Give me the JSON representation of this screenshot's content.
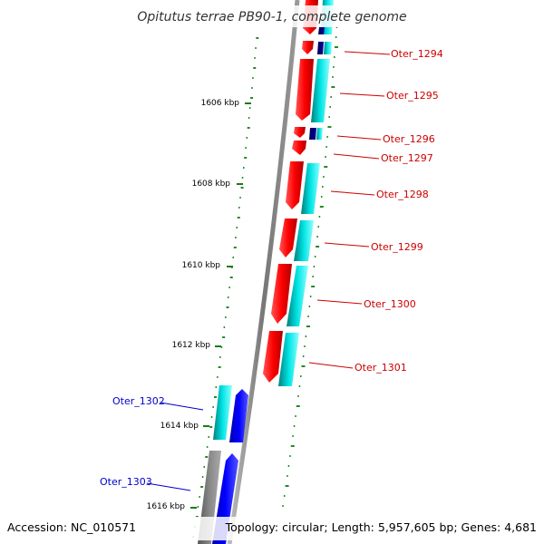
{
  "title": "Opitutus terrae PB90-1, complete genome",
  "footer": {
    "accession": "Accession: NC_010571",
    "topology": "Topology: circular; Length: 5,957,605 bp; Genes: 4,681"
  },
  "ruler": [
    "1606 kbp",
    "1608 kbp",
    "1610 kbp",
    "1612 kbp",
    "1614 kbp",
    "1616 kbp"
  ],
  "genes": [
    {
      "label": "Oter_1294",
      "strand": "plus"
    },
    {
      "label": "Oter_1295",
      "strand": "plus"
    },
    {
      "label": "Oter_1296",
      "strand": "plus"
    },
    {
      "label": "Oter_1297",
      "strand": "plus"
    },
    {
      "label": "Oter_1298",
      "strand": "plus"
    },
    {
      "label": "Oter_1299",
      "strand": "plus"
    },
    {
      "label": "Oter_1300",
      "strand": "plus"
    },
    {
      "label": "Oter_1301",
      "strand": "plus"
    },
    {
      "label": "Oter_1302",
      "strand": "minus"
    },
    {
      "label": "Oter_1303",
      "strand": "minus"
    }
  ],
  "colors": {
    "plus_cds": "#ff0000",
    "plus_rna": "#00ffff",
    "minus_cds": "#0000ff",
    "minus_rna": "#00dddd",
    "pseudo": "#777777",
    "backbone": "#888888",
    "gc_ticks": "#228b22",
    "plus_label": "#cc0000",
    "minus_label": "#0000cc"
  }
}
